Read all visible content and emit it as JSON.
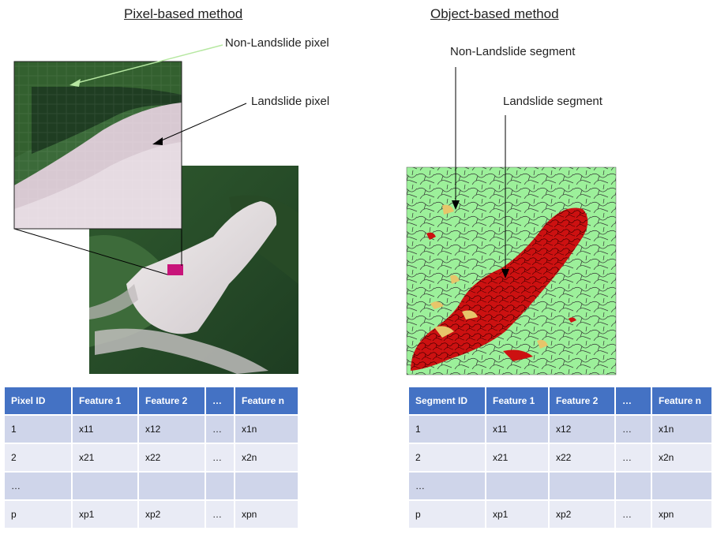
{
  "left": {
    "title": "Pixel-based method",
    "callout_nonlandslide": "Non-Landslide pixel",
    "callout_landslide": "Landslide pixel",
    "table": {
      "headers": [
        "Pixel ID",
        "Feature 1",
        "Feature 2",
        "…",
        "Feature n"
      ],
      "rows": [
        [
          "1",
          "x11",
          "x12",
          "…",
          "x1n"
        ],
        [
          "2",
          "x21",
          "x22",
          "…",
          "x2n"
        ],
        [
          "…",
          "",
          "",
          "",
          ""
        ],
        [
          "p",
          "xp1",
          "xp2",
          "…",
          "xpn"
        ]
      ]
    }
  },
  "right": {
    "title": "Object-based method",
    "callout_nonlandslide": "Non-Landslide segment",
    "callout_landslide": "Landslide segment",
    "table": {
      "headers": [
        "Segment ID",
        "Feature 1",
        "Feature 2",
        "…",
        "Feature n"
      ],
      "rows": [
        [
          "1",
          "x11",
          "x12",
          "…",
          "x1n"
        ],
        [
          "2",
          "x21",
          "x22",
          "…",
          "x2n"
        ],
        [
          "…",
          "",
          "",
          "",
          ""
        ],
        [
          "p",
          "xp1",
          "xp2",
          "…",
          "xpn"
        ]
      ]
    }
  },
  "colors": {
    "header_fill": "#4472c4",
    "row_fill_dark": "#cfd5ea",
    "row_fill_light": "#e9ebf5",
    "landslide_segment": "#cc1111",
    "nonlandslide_segment": "#9cf09a",
    "highlight_pixel": "#c8147a"
  }
}
